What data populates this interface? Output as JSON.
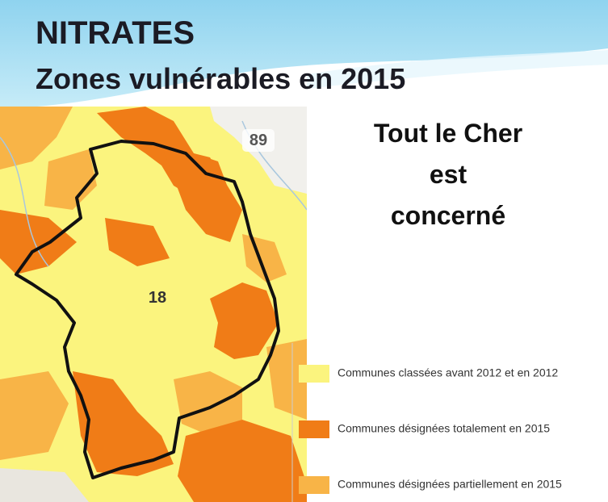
{
  "header": {
    "title": "NITRATES",
    "subtitle": "Zones vulnérables en 2015"
  },
  "message": {
    "lines": [
      "Tout le Cher",
      "est",
      "concerné"
    ]
  },
  "map": {
    "labels": [
      "89",
      "18"
    ]
  },
  "legend": {
    "items": [
      {
        "label": "Communes classées avant 2012 et en 2012",
        "color": "#fbf47e"
      },
      {
        "label": "Communes désignées totalement en 2015",
        "color": "#f07c17"
      },
      {
        "label": "Communes désignées partiellement en 2015",
        "color": "#f8b447"
      }
    ]
  }
}
